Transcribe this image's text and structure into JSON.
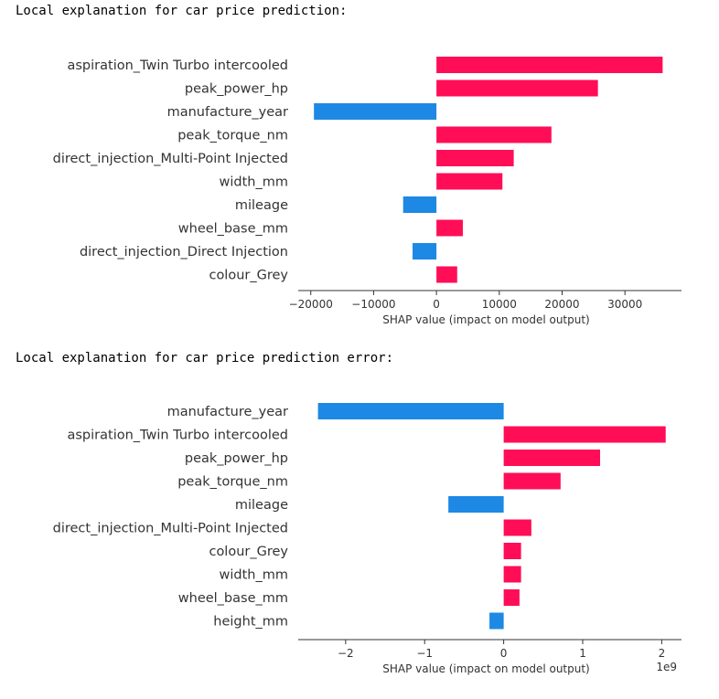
{
  "captions": [
    "Local explanation for car price prediction:",
    "Local explanation for car price prediction error:"
  ],
  "colors": {
    "positive": "#ff0d57",
    "negative": "#1e88e5",
    "axis": "#333333"
  },
  "chart_data": [
    {
      "type": "bar",
      "orientation": "horizontal",
      "categories": [
        "aspiration_Twin Turbo intercooled",
        "peak_power_hp",
        "manufacture_year",
        "peak_torque_nm",
        "direct_injection_Multi-Point Injected",
        "width_mm",
        "mileage",
        "wheel_base_mm",
        "direct_injection_Direct Injection",
        "colour_Grey"
      ],
      "values": [
        36000,
        25700,
        -19500,
        18300,
        12300,
        10500,
        -5300,
        4200,
        -3800,
        3300
      ],
      "xlabel": "SHAP value (impact on model output)",
      "xticks": [
        -20000,
        -10000,
        0,
        10000,
        20000,
        30000
      ],
      "xtick_labels": [
        "−20000",
        "−10000",
        "0",
        "10000",
        "20000",
        "30000"
      ],
      "xlim": [
        -22000,
        39000
      ],
      "offset_label": ""
    },
    {
      "type": "bar",
      "orientation": "horizontal",
      "categories": [
        "manufacture_year",
        "aspiration_Twin Turbo intercooled",
        "peak_power_hp",
        "peak_torque_nm",
        "mileage",
        "direct_injection_Multi-Point Injected",
        "colour_Grey",
        "width_mm",
        "wheel_base_mm",
        "height_mm"
      ],
      "values": [
        -2.35,
        2.05,
        1.22,
        0.72,
        -0.7,
        0.35,
        0.22,
        0.22,
        0.2,
        -0.18
      ],
      "xlabel": "SHAP value (impact on model output)",
      "xticks": [
        -2,
        -1,
        0,
        1,
        2
      ],
      "xtick_labels": [
        "−2",
        "−1",
        "0",
        "1",
        "2"
      ],
      "xlim": [
        -2.6,
        2.25
      ],
      "offset_label": "1e9"
    }
  ]
}
